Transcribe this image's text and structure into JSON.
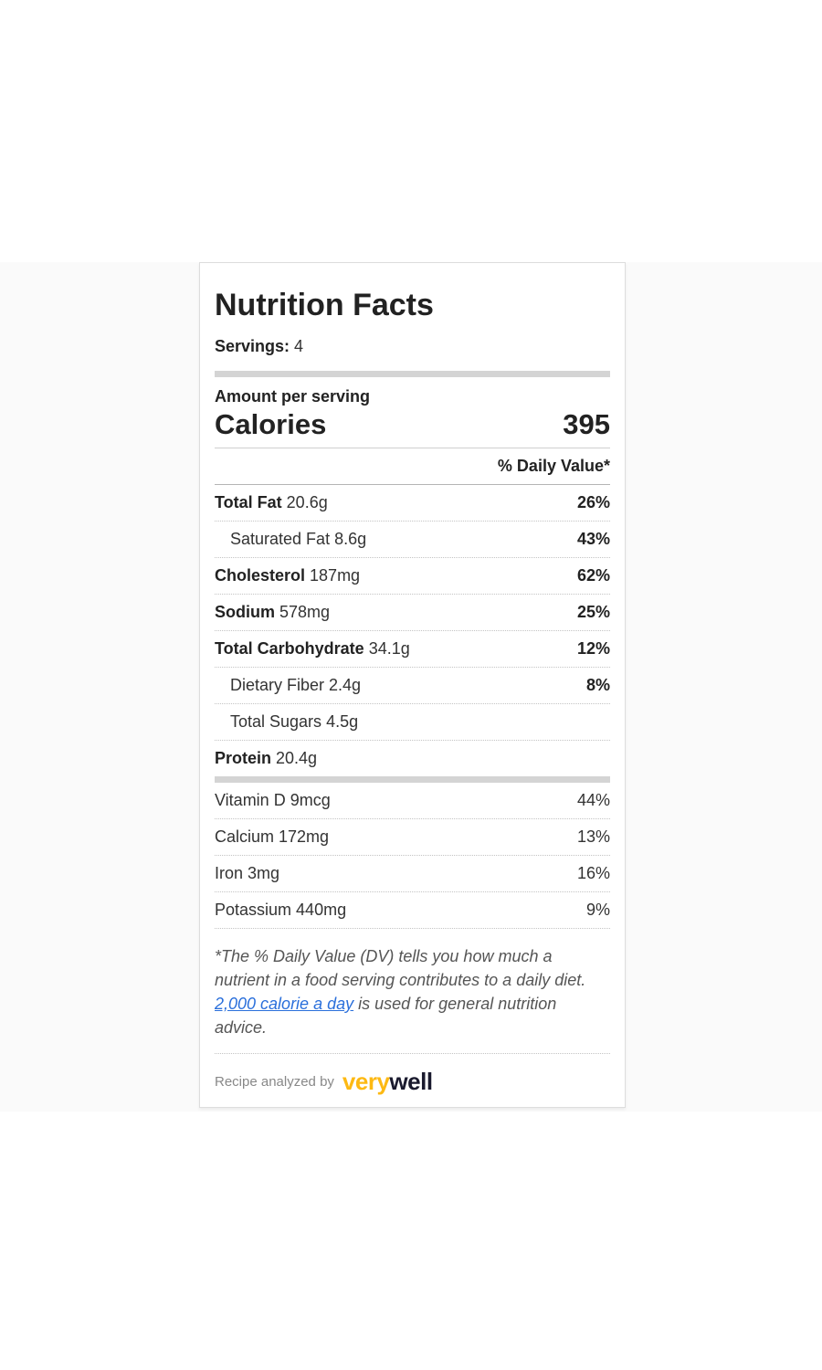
{
  "nutrition_label": {
    "title": "Nutrition Facts",
    "servings": {
      "label": "Servings:",
      "value": "4"
    },
    "amount_per_serving": "Amount per serving",
    "calories": {
      "label": "Calories",
      "value": "395"
    },
    "daily_value_header": "% Daily Value*",
    "nutrient_rows": [
      {
        "name": "Total Fat",
        "amount": "20.6g",
        "dv": "26%"
      },
      {
        "name": "Saturated Fat",
        "amount": "8.6g",
        "dv": "43%"
      },
      {
        "name": "Cholesterol",
        "amount": "187mg",
        "dv": "62%"
      },
      {
        "name": "Sodium",
        "amount": "578mg",
        "dv": "25%"
      },
      {
        "name": "Total Carbohydrate",
        "amount": "34.1g",
        "dv": "12%"
      },
      {
        "name": "Dietary Fiber",
        "amount": "2.4g",
        "dv": "8%"
      },
      {
        "name": "Total Sugars",
        "amount": "4.5g",
        "dv": ""
      },
      {
        "name": "Protein",
        "amount": "20.4g",
        "dv": ""
      }
    ],
    "micronutrient_rows": [
      {
        "name": "Vitamin D",
        "amount": "9mcg",
        "dv": "44%"
      },
      {
        "name": "Calcium",
        "amount": "172mg",
        "dv": "13%"
      },
      {
        "name": "Iron",
        "amount": "3mg",
        "dv": "16%"
      },
      {
        "name": "Potassium",
        "amount": "440mg",
        "dv": "9%"
      }
    ],
    "footnote": {
      "text_before_link": "*The % Daily Value (DV) tells you how much a nutrient in a food serving contributes to a daily diet. ",
      "link_text": "2,000 calorie a day",
      "text_after_link": " is used for general nutrition advice."
    },
    "attribution": {
      "prefix": "Recipe analyzed by",
      "brand_part1": "very",
      "brand_part2": "well"
    }
  },
  "colors": {
    "link_blue": "#2a6fdb",
    "brand_gold": "#fdb913",
    "brand_dark": "#1a1a2e",
    "bar_gray": "#d4d4d4",
    "card_border": "#dddddd"
  }
}
